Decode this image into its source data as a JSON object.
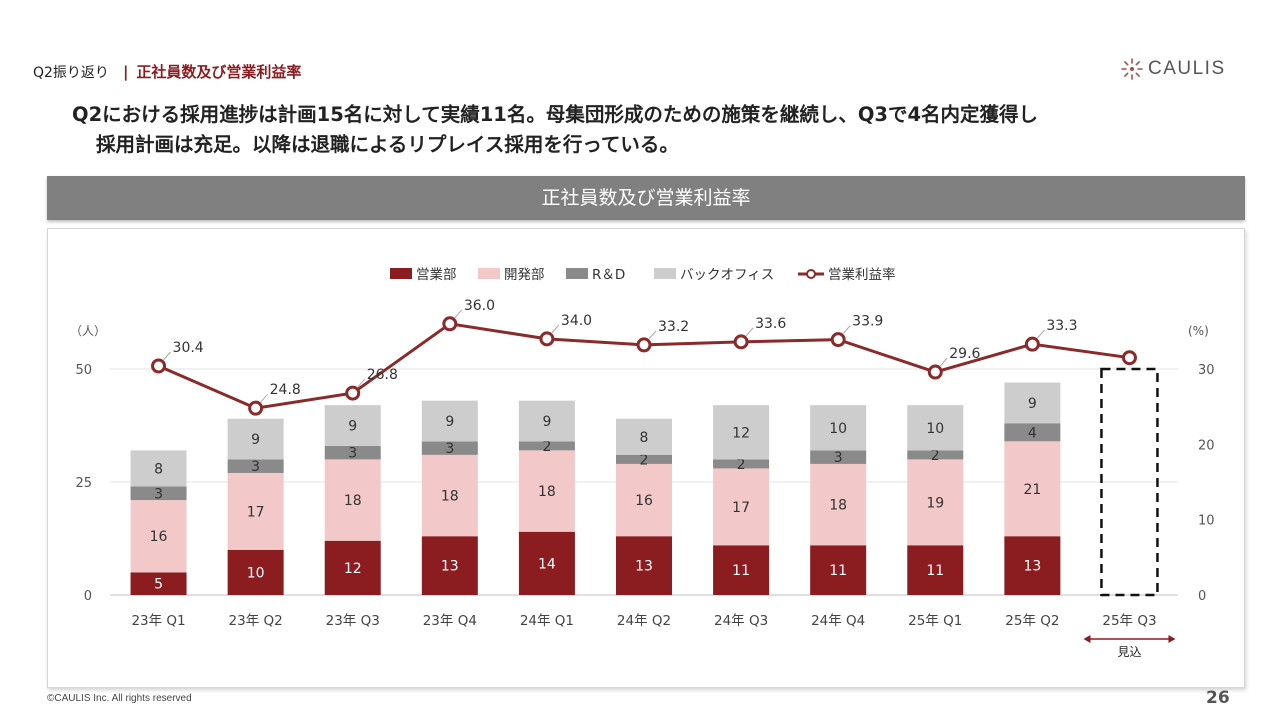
{
  "header": {
    "section": "Q2振り返り",
    "separator": "|",
    "title": "正社員数及び営業利益率",
    "logo_text": "CAULIS",
    "logo_icon": "sparkle-circle-icon"
  },
  "headline": {
    "line1": "Q2における採用進捗は計画15名に対して実績11名。母集団形成のための施策を継続し、Q3で4名内定獲得し",
    "line2": "採用計画は充足。以降は退職によるリプレイス採用を行っている。"
  },
  "banner": {
    "title": "正社員数及び営業利益率"
  },
  "footer": {
    "copyright": "©CAULIS Inc. All rights reserved",
    "page": "26"
  },
  "chart_data": {
    "type": "bar",
    "stacked": true,
    "title": "正社員数及び営業利益率",
    "categories": [
      "23年 Q1",
      "23年 Q2",
      "23年 Q3",
      "23年 Q4",
      "24年 Q1",
      "24年 Q2",
      "24年 Q3",
      "24年 Q4",
      "25年 Q1",
      "25年 Q2",
      "25年 Q3"
    ],
    "series": [
      {
        "name": "営業部",
        "values": [
          5,
          10,
          12,
          13,
          14,
          13,
          11,
          11,
          11,
          13,
          null
        ],
        "color": "#8b1c1f"
      },
      {
        "name": "開発部",
        "values": [
          16,
          17,
          18,
          18,
          18,
          16,
          17,
          18,
          19,
          21,
          null
        ],
        "color": "#f2c8c8"
      },
      {
        "name": "R＆D",
        "values": [
          3,
          3,
          3,
          3,
          2,
          2,
          2,
          3,
          2,
          4,
          null
        ],
        "color": "#8a8a8a"
      },
      {
        "name": "バックオフィス",
        "values": [
          8,
          9,
          9,
          9,
          9,
          8,
          12,
          10,
          10,
          9,
          null
        ],
        "color": "#cdcdcd"
      }
    ],
    "line_series": {
      "name": "営業利益率",
      "values": [
        30.4,
        24.8,
        26.8,
        36.0,
        34.0,
        33.2,
        33.6,
        33.9,
        29.6,
        33.3,
        31.5
      ],
      "labels": [
        "30.4",
        "24.8",
        "26.8",
        "36.0",
        "34.0",
        "33.2",
        "33.6",
        "33.9",
        "29.6",
        "33.3",
        ""
      ],
      "color": "#8b2a2a"
    },
    "y_left": {
      "unit": "（人）",
      "ylim": [
        0,
        50
      ],
      "ticks": [
        "0",
        "25",
        "50"
      ]
    },
    "y_right": {
      "unit": "(%)",
      "ylim": [
        0,
        30
      ],
      "ticks": [
        "0",
        "10",
        "20",
        "30"
      ]
    },
    "forecast": {
      "category": "25年 Q3",
      "total": 50,
      "label": "見込"
    },
    "legend_position": "top-center",
    "grid": true
  }
}
